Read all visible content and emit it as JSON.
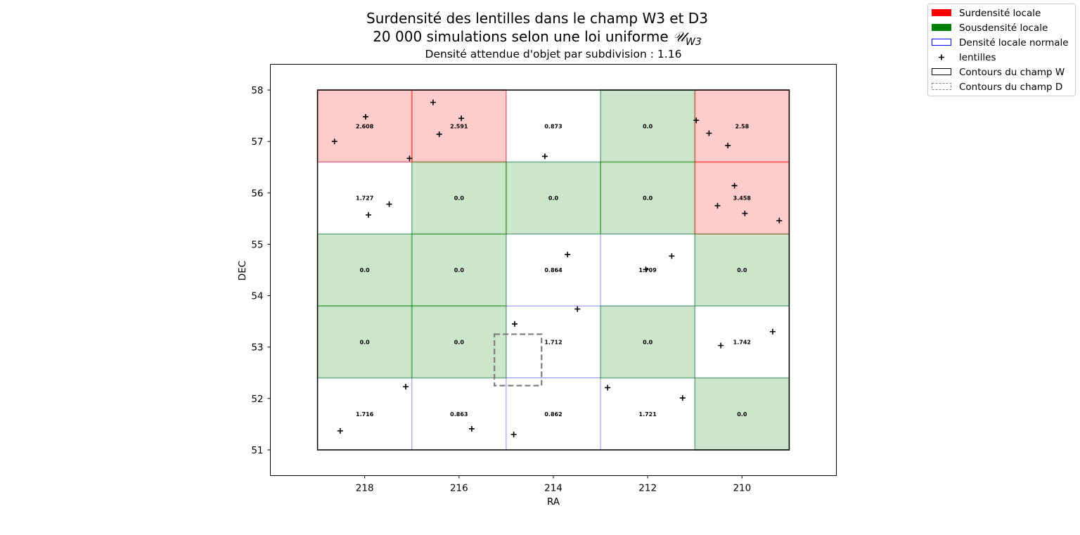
{
  "chart_data": {
    "type": "heatmap",
    "title": "Surdensité des lentilles dans le champ W3 et D3",
    "title_line2_prefix": "20 000 simulations selon une loi uniforme ",
    "title_line2_math": "𝒰",
    "title_line2_sub": "W3",
    "subtitle": "Densité attendue d'objet par subdivision : 1.16",
    "xlabel": "RA",
    "ylabel": "DEC",
    "xlim": [
      220,
      208
    ],
    "ylim": [
      50.5,
      58.5
    ],
    "xticks": [
      218,
      216,
      214,
      212,
      210
    ],
    "yticks": [
      51,
      52,
      53,
      54,
      55,
      56,
      57,
      58
    ],
    "grid": false,
    "legend_position": "top-right outside",
    "colors": {
      "over": "#ff0000",
      "under": "#008000",
      "normal": "#0000ff",
      "lens": "#000000",
      "field_w": "#000000",
      "field_d": "#808080"
    },
    "legend": [
      {
        "label": "Surdensité locale",
        "style": "over"
      },
      {
        "label": "Sousdensité locale",
        "style": "under"
      },
      {
        "label": "Densité locale normale",
        "style": "normal"
      },
      {
        "label": "lentilles",
        "style": "marker"
      },
      {
        "label": "Contours du champ W",
        "style": "field_w"
      },
      {
        "label": "Contours du champ D",
        "style": "field_d"
      }
    ],
    "field_w": {
      "ra": [
        209,
        219
      ],
      "dec": [
        51,
        58
      ]
    },
    "field_d": {
      "ra": [
        214.25,
        215.25
      ],
      "dec": [
        52.25,
        53.25
      ]
    },
    "cells": [
      {
        "ra_min": 217,
        "ra_max": 219,
        "dec_min": 56.6,
        "dec_max": 58.0,
        "value": "2.608",
        "class": "over"
      },
      {
        "ra_min": 215,
        "ra_max": 217,
        "dec_min": 56.6,
        "dec_max": 58.0,
        "value": "2.591",
        "class": "over"
      },
      {
        "ra_min": 213,
        "ra_max": 215,
        "dec_min": 56.6,
        "dec_max": 58.0,
        "value": "0.873",
        "class": "normal"
      },
      {
        "ra_min": 211,
        "ra_max": 213,
        "dec_min": 56.6,
        "dec_max": 58.0,
        "value": "0.0",
        "class": "under"
      },
      {
        "ra_min": 209,
        "ra_max": 211,
        "dec_min": 56.6,
        "dec_max": 58.0,
        "value": "2.58",
        "class": "over"
      },
      {
        "ra_min": 217,
        "ra_max": 219,
        "dec_min": 55.2,
        "dec_max": 56.6,
        "value": "1.727",
        "class": "normal"
      },
      {
        "ra_min": 215,
        "ra_max": 217,
        "dec_min": 55.2,
        "dec_max": 56.6,
        "value": "0.0",
        "class": "under"
      },
      {
        "ra_min": 213,
        "ra_max": 215,
        "dec_min": 55.2,
        "dec_max": 56.6,
        "value": "0.0",
        "class": "under"
      },
      {
        "ra_min": 211,
        "ra_max": 213,
        "dec_min": 55.2,
        "dec_max": 56.6,
        "value": "0.0",
        "class": "under"
      },
      {
        "ra_min": 209,
        "ra_max": 211,
        "dec_min": 55.2,
        "dec_max": 56.6,
        "value": "3.458",
        "class": "over"
      },
      {
        "ra_min": 217,
        "ra_max": 219,
        "dec_min": 53.8,
        "dec_max": 55.2,
        "value": "0.0",
        "class": "under"
      },
      {
        "ra_min": 215,
        "ra_max": 217,
        "dec_min": 53.8,
        "dec_max": 55.2,
        "value": "0.0",
        "class": "under"
      },
      {
        "ra_min": 213,
        "ra_max": 215,
        "dec_min": 53.8,
        "dec_max": 55.2,
        "value": "0.864",
        "class": "normal"
      },
      {
        "ra_min": 211,
        "ra_max": 213,
        "dec_min": 53.8,
        "dec_max": 55.2,
        "value": "1.709",
        "class": "normal"
      },
      {
        "ra_min": 209,
        "ra_max": 211,
        "dec_min": 53.8,
        "dec_max": 55.2,
        "value": "0.0",
        "class": "under"
      },
      {
        "ra_min": 217,
        "ra_max": 219,
        "dec_min": 52.4,
        "dec_max": 53.8,
        "value": "0.0",
        "class": "under"
      },
      {
        "ra_min": 215,
        "ra_max": 217,
        "dec_min": 52.4,
        "dec_max": 53.8,
        "value": "0.0",
        "class": "under"
      },
      {
        "ra_min": 213,
        "ra_max": 215,
        "dec_min": 52.4,
        "dec_max": 53.8,
        "value": "1.712",
        "class": "normal"
      },
      {
        "ra_min": 211,
        "ra_max": 213,
        "dec_min": 52.4,
        "dec_max": 53.8,
        "value": "0.0",
        "class": "under"
      },
      {
        "ra_min": 209,
        "ra_max": 211,
        "dec_min": 52.4,
        "dec_max": 53.8,
        "value": "1.742",
        "class": "normal"
      },
      {
        "ra_min": 217,
        "ra_max": 219,
        "dec_min": 51.0,
        "dec_max": 52.4,
        "value": "1.716",
        "class": "normal"
      },
      {
        "ra_min": 215,
        "ra_max": 217,
        "dec_min": 51.0,
        "dec_max": 52.4,
        "value": "0.863",
        "class": "normal"
      },
      {
        "ra_min": 213,
        "ra_max": 215,
        "dec_min": 51.0,
        "dec_max": 52.4,
        "value": "0.862",
        "class": "normal"
      },
      {
        "ra_min": 211,
        "ra_max": 213,
        "dec_min": 51.0,
        "dec_max": 52.4,
        "value": "1.721",
        "class": "normal"
      },
      {
        "ra_min": 209,
        "ra_max": 211,
        "dec_min": 51.0,
        "dec_max": 52.4,
        "value": "0.0",
        "class": "under"
      }
    ],
    "lenses": [
      [
        217.98,
        57.48
      ],
      [
        218.64,
        57.0
      ],
      [
        217.05,
        56.67
      ],
      [
        216.55,
        57.76
      ],
      [
        215.95,
        57.45
      ],
      [
        216.42,
        57.14
      ],
      [
        214.18,
        56.71
      ],
      [
        210.97,
        57.41
      ],
      [
        210.7,
        57.16
      ],
      [
        210.3,
        56.92
      ],
      [
        210.16,
        56.14
      ],
      [
        210.52,
        55.75
      ],
      [
        209.94,
        55.6
      ],
      [
        209.21,
        55.46
      ],
      [
        217.48,
        55.78
      ],
      [
        217.92,
        55.57
      ],
      [
        213.7,
        54.8
      ],
      [
        211.49,
        54.77
      ],
      [
        212.04,
        54.51
      ],
      [
        213.49,
        53.74
      ],
      [
        214.82,
        53.45
      ],
      [
        209.35,
        53.3
      ],
      [
        210.45,
        53.03
      ],
      [
        217.13,
        52.23
      ],
      [
        212.85,
        52.21
      ],
      [
        211.26,
        52.01
      ],
      [
        218.52,
        51.37
      ],
      [
        215.73,
        51.41
      ],
      [
        214.84,
        51.3
      ]
    ]
  }
}
